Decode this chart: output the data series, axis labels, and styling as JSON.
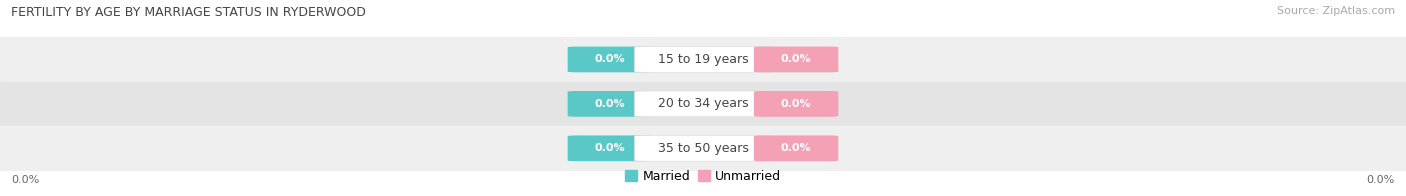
{
  "title": "FERTILITY BY AGE BY MARRIAGE STATUS IN RYDERWOOD",
  "source": "Source: ZipAtlas.com",
  "categories": [
    "15 to 19 years",
    "20 to 34 years",
    "35 to 50 years"
  ],
  "married_values": [
    0.0,
    0.0,
    0.0
  ],
  "unmarried_values": [
    0.0,
    0.0,
    0.0
  ],
  "married_color": "#5bc8c8",
  "unmarried_color": "#f4a0b5",
  "row_bg_colors": [
    "#efefef",
    "#e4e4e4",
    "#efefef"
  ],
  "legend_labels": [
    "Married",
    "Unmarried"
  ],
  "axis_label_left": "0.0%",
  "axis_label_right": "0.0%",
  "background_color": "#ffffff",
  "title_fontsize": 9,
  "source_fontsize": 8,
  "bar_label_fontsize": 8,
  "cat_label_fontsize": 9,
  "legend_fontsize": 9,
  "axis_tick_fontsize": 8
}
